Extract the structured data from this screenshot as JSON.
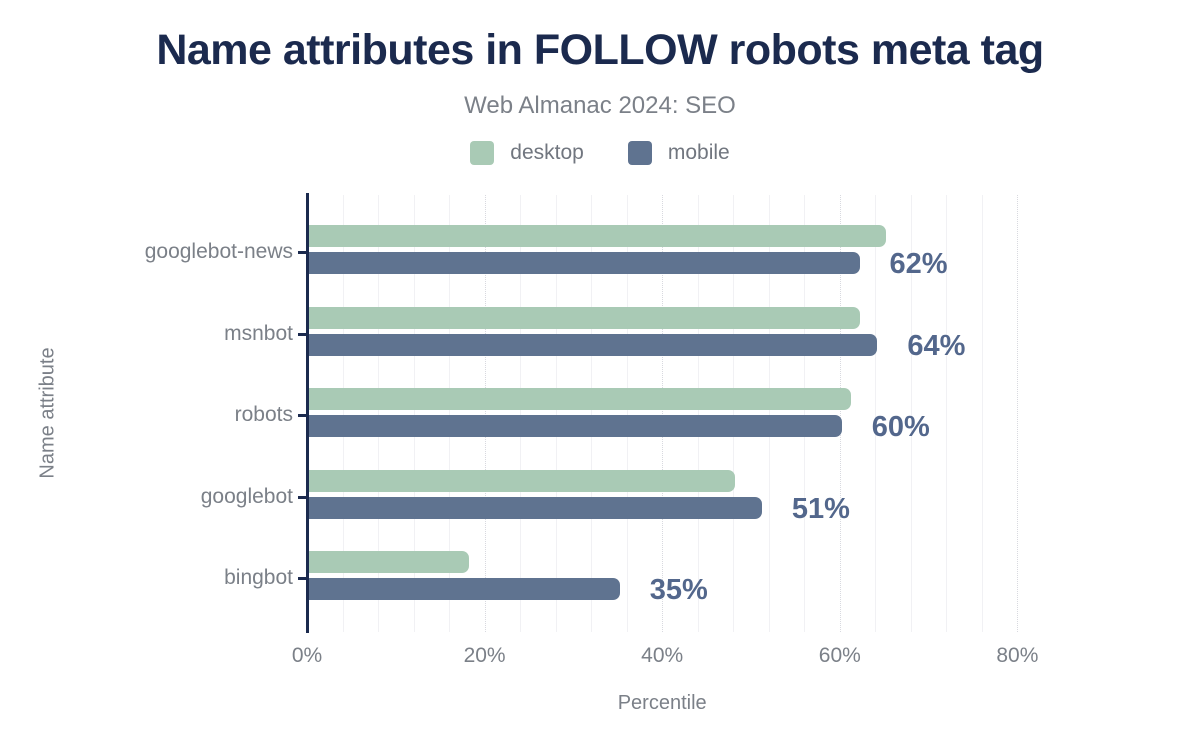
{
  "title": "Name attributes in FOLLOW robots meta tag",
  "subtitle": "Web Almanac 2024: SEO",
  "colors": {
    "title_navy": "#1b2a4e",
    "axis_navy": "#1b2a4e",
    "text_gray": "#7b8088",
    "desktop_green": "#a9cab5",
    "mobile_slate": "#5f7390",
    "value_label": "#53678c",
    "gridline_minor": "#f1f1f4",
    "gridline_major": "#d8d9df",
    "background": "#ffffff"
  },
  "legend": [
    {
      "name": "desktop",
      "label": "desktop",
      "color": "#a9cab5"
    },
    {
      "name": "mobile",
      "label": "mobile",
      "color": "#5f7390"
    }
  ],
  "chart_data": {
    "type": "bar",
    "orientation": "horizontal",
    "title": "Name attributes in FOLLOW robots meta tag",
    "subtitle": "Web Almanac 2024: SEO",
    "categories": [
      "googlebot-news",
      "msnbot",
      "robots",
      "googlebot",
      "bingbot"
    ],
    "series": [
      {
        "name": "desktop",
        "color": "#a9cab5",
        "values": [
          65,
          62,
          61,
          48,
          18
        ]
      },
      {
        "name": "mobile",
        "color": "#5f7390",
        "values": [
          62,
          64,
          60,
          51,
          35
        ]
      }
    ],
    "value_labels": [
      "62%",
      "64%",
      "60%",
      "51%",
      "35%"
    ],
    "value_labels_series": "mobile",
    "xlabel": "Percentile",
    "ylabel": "Name attribute",
    "x_ticks": [
      "0%",
      "20%",
      "40%",
      "60%",
      "80%"
    ],
    "x_tick_values": [
      0,
      20,
      40,
      60,
      80
    ],
    "xlim": [
      0,
      80
    ],
    "grid": "vertical, minor every 4%, major dotted every 20%",
    "legend_position": "top center"
  }
}
